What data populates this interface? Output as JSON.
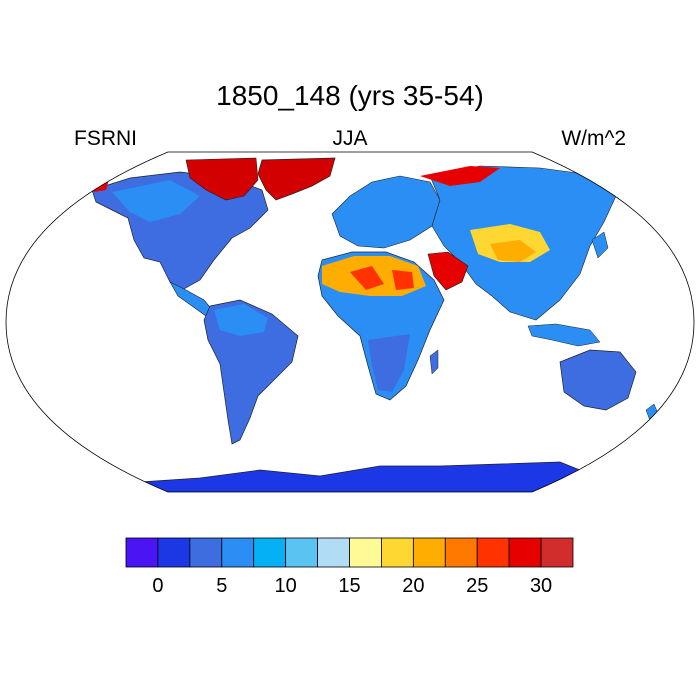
{
  "title": "1850_148 (yrs 35-54)",
  "variable": "FSRNI",
  "season": "JJA",
  "units": "W/m^2",
  "colorbar": {
    "colors": [
      "#4a14f5",
      "#1c38e6",
      "#3d6de0",
      "#2a8ef5",
      "#06b0f5",
      "#5ac3f2",
      "#b0dcf5",
      "#fffa96",
      "#ffd732",
      "#ffad00",
      "#ff7800",
      "#ff3200",
      "#e60000",
      "#d22d2d"
    ],
    "tick_labels": [
      "0",
      "5",
      "10",
      "15",
      "20",
      "25",
      "30"
    ]
  },
  "map": {
    "projection": "robinson",
    "ocean_color": "#ffffff",
    "land_colors": {
      "antarctica": "#1c38e6",
      "greenland": "#d20000",
      "sahara": "#ff3200",
      "arabia": "#e60000"
    }
  }
}
